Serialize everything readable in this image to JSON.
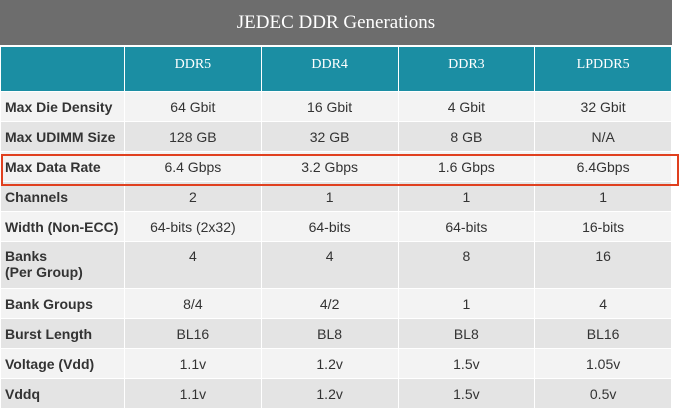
{
  "title": "JEDEC DDR Generations",
  "columns": [
    "DDR5",
    "DDR4",
    "DDR3",
    "LPDDR5"
  ],
  "rows": [
    {
      "label": "Max Die Density",
      "cells": [
        "64 Gbit",
        "16 Gbit",
        "4 Gbit",
        "32 Gbit"
      ]
    },
    {
      "label": "Max UDIMM Size",
      "cells": [
        "128 GB",
        "32 GB",
        "8 GB",
        "N/A"
      ]
    },
    {
      "label": "Max Data Rate",
      "cells": [
        "6.4 Gbps",
        "3.2 Gbps",
        "1.6 Gbps",
        "6.4Gbps"
      ]
    },
    {
      "label": "Channels",
      "cells": [
        "2",
        "1",
        "1",
        "1"
      ]
    },
    {
      "label": "Width (Non-ECC)",
      "cells": [
        "64-bits (2x32)",
        "64-bits",
        "64-bits",
        "16-bits"
      ]
    },
    {
      "label": "Banks\n(Per Group)",
      "cells": [
        "4",
        "4",
        "8",
        "16"
      ]
    },
    {
      "label": "Bank Groups",
      "cells": [
        "8/4",
        "4/2",
        "1",
        "4"
      ]
    },
    {
      "label": "Burst Length",
      "cells": [
        "BL16",
        "BL8",
        "BL8",
        "BL16"
      ]
    },
    {
      "label": "Voltage (Vdd)",
      "cells": [
        "1.1v",
        "1.2v",
        "1.5v",
        "1.05v"
      ]
    },
    {
      "label": "Vddq",
      "cells": [
        "1.1v",
        "1.2v",
        "1.5v",
        "0.5v"
      ]
    }
  ]
}
